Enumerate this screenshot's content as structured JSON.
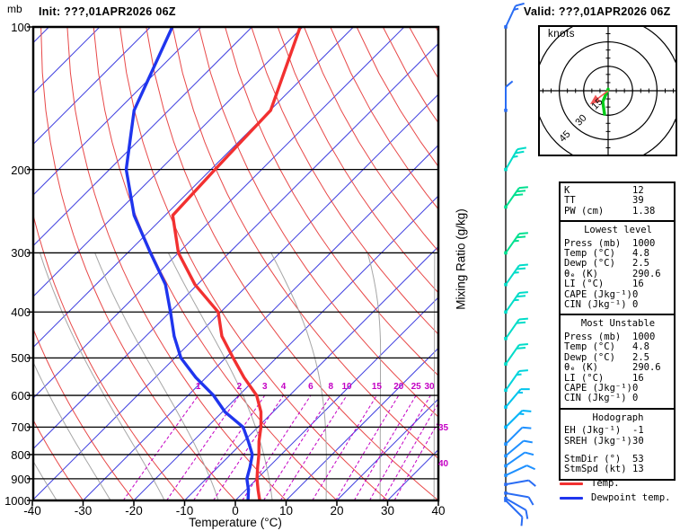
{
  "titles": {
    "init": "Init: ???,01APR2026 06Z",
    "valid": "Valid: ???,01APR2026 06Z",
    "pressure_unit_label": "mb",
    "x_axis_label": "Temperature (°C)",
    "right_axis_label": "Mixing Ratio (g/kg)"
  },
  "axes": {
    "pressure_ticks_mb": [
      100,
      200,
      300,
      400,
      500,
      600,
      700,
      800,
      900,
      1000
    ],
    "temperature_ticks_c": [
      -40,
      -30,
      -20,
      -10,
      0,
      10,
      20,
      30,
      40
    ],
    "mixing_ratio_labels_gkg": [
      1,
      2,
      3,
      4,
      6,
      8,
      10,
      15,
      20,
      25,
      30
    ],
    "mixing_ratio_right_labels_gkg": [
      35,
      40
    ]
  },
  "palette": {
    "isotherm": "#4343e0",
    "dry_adiabat": "#e84848",
    "moist_adiabat": "#a6a6a6",
    "mixing_ratio": "#c400c4",
    "axis": "#000000",
    "temp_curve": "#f23030",
    "dewp_curve": "#1f35ee"
  },
  "chart_data": {
    "type": "line",
    "variant": "skew-t-log-p",
    "xlabel": "Temperature (°C)",
    "ylabel": "mb",
    "x_range_c": [
      -40,
      40
    ],
    "pressure_range_mb": [
      100,
      1000
    ],
    "skew": "45deg-isotherms",
    "pressure_levels_mb": [
      1000,
      950,
      900,
      850,
      800,
      750,
      700,
      650,
      600,
      550,
      500,
      450,
      400,
      350,
      300,
      250,
      200,
      150,
      100
    ],
    "series": [
      {
        "name": "Temp.",
        "color": "#f23030",
        "values_c": [
          4.8,
          2.4,
          0.0,
          -2.2,
          -4.4,
          -7.0,
          -9.4,
          -12.4,
          -16.5,
          -22.5,
          -28.5,
          -35.0,
          -40.5,
          -50.5,
          -60.0,
          -68.5,
          -69.2,
          -69.9,
          -80.5
        ]
      },
      {
        "name": "Dewpoint temp.",
        "color": "#1f35ee",
        "values_c": [
          2.5,
          0.5,
          -2.0,
          -3.7,
          -5.7,
          -9.1,
          -12.9,
          -19.5,
          -25.0,
          -32.0,
          -38.8,
          -44.4,
          -49.9,
          -56.3,
          -65.5,
          -76.1,
          -86.7,
          -96.8,
          -105.7
        ]
      }
    ]
  },
  "legend": {
    "items": [
      {
        "label": "Temp.",
        "color": "#f23030"
      },
      {
        "label": "Dewpoint temp.",
        "color": "#1f35ee"
      }
    ]
  },
  "hodograph": {
    "units_label": "knots",
    "ring_radii_kt": [
      15,
      30,
      45
    ],
    "trace_uv_kt": [
      [
        0,
        1
      ],
      [
        -3.3,
        -6.7
      ],
      [
        -2.2,
        -14.4
      ]
    ],
    "trace_color": "#00cc18",
    "storm_vector_color": "#f25555",
    "storm_motion": {
      "dir_deg": 53,
      "spd_kt": 13
    }
  },
  "wind_barbs": {
    "levels": [
      {
        "p": 100,
        "spd_kt": 15,
        "dir_deg": 25,
        "color": "#2a6df4"
      },
      {
        "p": 150,
        "spd_kt": 10,
        "dir_deg": 0,
        "color": "#2a6df4"
      },
      {
        "p": 200,
        "spd_kt": 25,
        "dir_deg": 30,
        "color": "#00dcc8"
      },
      {
        "p": 240,
        "spd_kt": 30,
        "dir_deg": 35,
        "color": "#00e090"
      },
      {
        "p": 300,
        "spd_kt": 25,
        "dir_deg": 35,
        "color": "#00e090"
      },
      {
        "p": 350,
        "spd_kt": 25,
        "dir_deg": 35,
        "color": "#00dcc8"
      },
      {
        "p": 400,
        "spd_kt": 25,
        "dir_deg": 35,
        "color": "#00dcc8"
      },
      {
        "p": 455,
        "spd_kt": 20,
        "dir_deg": 35,
        "color": "#00dcc8"
      },
      {
        "p": 515,
        "spd_kt": 20,
        "dir_deg": 35,
        "color": "#00dcc8"
      },
      {
        "p": 585,
        "spd_kt": 15,
        "dir_deg": 35,
        "color": "#00d4dc"
      },
      {
        "p": 635,
        "spd_kt": 15,
        "dir_deg": 40,
        "color": "#00c4ec"
      },
      {
        "p": 700,
        "spd_kt": 15,
        "dir_deg": 45,
        "color": "#00b4f8"
      },
      {
        "p": 760,
        "spd_kt": 10,
        "dir_deg": 45,
        "color": "#1e90ff"
      },
      {
        "p": 805,
        "spd_kt": 10,
        "dir_deg": 50,
        "color": "#1e90ff"
      },
      {
        "p": 845,
        "spd_kt": 10,
        "dir_deg": 55,
        "color": "#1e90ff"
      },
      {
        "p": 885,
        "spd_kt": 10,
        "dir_deg": 65,
        "color": "#1e90ff"
      },
      {
        "p": 925,
        "spd_kt": 10,
        "dir_deg": 80,
        "color": "#2a6df4"
      },
      {
        "p": 965,
        "spd_kt": 10,
        "dir_deg": 100,
        "color": "#2a6df4"
      },
      {
        "p": 990,
        "spd_kt": 10,
        "dir_deg": 120,
        "color": "#2a6df4"
      },
      {
        "p": 1000,
        "spd_kt": 10,
        "dir_deg": 135,
        "color": "#2a6df4"
      }
    ]
  },
  "table": {
    "sections": [
      {
        "header": "",
        "rows": [
          {
            "l": "K",
            "v": "12"
          },
          {
            "l": "TT",
            "v": "39"
          },
          {
            "l": "PW (cm)",
            "v": "1.38"
          }
        ]
      },
      {
        "header": "Lowest level",
        "rows": [
          {
            "l": "Press (mb)",
            "v": "1000"
          },
          {
            "l": "Temp (°C)",
            "v": "4.8"
          },
          {
            "l": "Dewp (°C)",
            "v": "2.5"
          },
          {
            "l": "θₑ (K)",
            "v": "290.6"
          },
          {
            "l": "LI (°C)",
            "v": "16"
          },
          {
            "l": "CAPE (Jkg⁻¹)",
            "v": "0"
          },
          {
            "l": "CIN (Jkg⁻¹)",
            "v": "0"
          }
        ]
      },
      {
        "header": "Most Unstable",
        "rows": [
          {
            "l": "Press (mb)",
            "v": "1000"
          },
          {
            "l": "Temp (°C)",
            "v": "4.8"
          },
          {
            "l": "Dewp (°C)",
            "v": "2.5"
          },
          {
            "l": "θₑ (K)",
            "v": "290.6"
          },
          {
            "l": "LI (°C)",
            "v": "16"
          },
          {
            "l": "CAPE (Jkg⁻¹)",
            "v": "0"
          },
          {
            "l": "CIN (Jkg⁻¹)",
            "v": "0"
          }
        ]
      },
      {
        "header": "Hodograph",
        "rows": [
          {
            "l": "EH (Jkg⁻¹)",
            "v": "-1"
          },
          {
            "l": "SREH (Jkg⁻¹)",
            "v": "30"
          },
          {
            "l": "StmDir (°)",
            "v": "53",
            "gap": true
          },
          {
            "l": "StmSpd (kt)",
            "v": "13"
          }
        ]
      }
    ]
  }
}
